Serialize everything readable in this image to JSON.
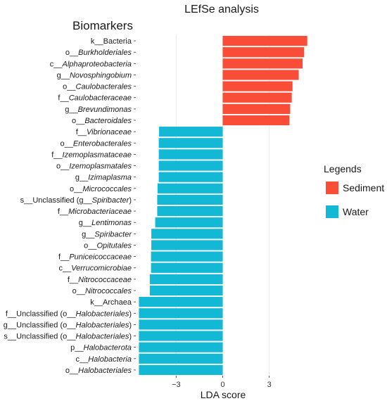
{
  "chart_data": {
    "type": "bar",
    "orientation": "horizontal",
    "title": "LEfSe analysis",
    "ylabel": "Biomarkers",
    "xlabel": "LDA score",
    "xlim": [
      -5.6,
      5.6
    ],
    "xticks": [
      -3,
      0,
      3
    ],
    "grid": true,
    "legend_title": "Legends",
    "legend_position": "right",
    "series": [
      {
        "name": "Sediment",
        "color": "#F94D38"
      },
      {
        "name": "Water",
        "color": "#13B8D4"
      }
    ],
    "categories": [
      {
        "prefix": "k__",
        "name": "Bacteria",
        "italic": false,
        "value": 5.45,
        "group": "Sediment"
      },
      {
        "prefix": "o__",
        "name": "Burkholderiales",
        "italic": true,
        "value": 5.25,
        "group": "Sediment"
      },
      {
        "prefix": "c__",
        "name": "Alphaproteobacteria",
        "italic": true,
        "value": 5.15,
        "group": "Sediment"
      },
      {
        "prefix": "g__",
        "name": "Novosphingobium",
        "italic": true,
        "value": 4.9,
        "group": "Sediment"
      },
      {
        "prefix": "o__",
        "name": "Caulobacterales",
        "italic": true,
        "value": 4.5,
        "group": "Sediment"
      },
      {
        "prefix": "f__",
        "name": "Caulobacteraceae",
        "italic": true,
        "value": 4.45,
        "group": "Sediment"
      },
      {
        "prefix": "g__",
        "name": "Brevundimonas",
        "italic": true,
        "value": 4.35,
        "group": "Sediment"
      },
      {
        "prefix": "o__",
        "name": "Bacteroidales",
        "italic": true,
        "value": 4.3,
        "group": "Sediment"
      },
      {
        "prefix": "f__",
        "name": "Vibrionaceae",
        "italic": true,
        "value": -4.1,
        "group": "Water"
      },
      {
        "prefix": "o__",
        "name": "Enterobacterales",
        "italic": true,
        "value": -4.12,
        "group": "Water"
      },
      {
        "prefix": "f__",
        "name": "Izemoplasmataceae",
        "italic": true,
        "value": -4.12,
        "group": "Water"
      },
      {
        "prefix": "o__",
        "name": "Izemoplasmatales",
        "italic": true,
        "value": -4.12,
        "group": "Water"
      },
      {
        "prefix": "g__",
        "name": "Izimaplasma",
        "italic": true,
        "value": -4.12,
        "group": "Water"
      },
      {
        "prefix": "o__",
        "name": "Micrococcales",
        "italic": true,
        "value": -4.2,
        "group": "Water"
      },
      {
        "prefix": "s__Unclassified (g__",
        "name": "Spiribacter",
        "suffix": ")",
        "italic": true,
        "value": -4.22,
        "group": "Water"
      },
      {
        "prefix": "f__",
        "name": "Microbacteriaceae",
        "italic": true,
        "value": -4.22,
        "group": "Water"
      },
      {
        "prefix": "g__",
        "name": "Lentimonas",
        "italic": true,
        "value": -4.35,
        "group": "Water"
      },
      {
        "prefix": "g__",
        "name": "Spiribacter",
        "italic": true,
        "value": -4.6,
        "group": "Water"
      },
      {
        "prefix": "o__",
        "name": "Opitutales",
        "italic": true,
        "value": -4.6,
        "group": "Water"
      },
      {
        "prefix": "f__",
        "name": "Puniceicoccaceae",
        "italic": true,
        "value": -4.62,
        "group": "Water"
      },
      {
        "prefix": "c__",
        "name": "Verrucomicrobiae",
        "italic": true,
        "value": -4.62,
        "group": "Water"
      },
      {
        "prefix": "f__",
        "name": "Nitrococcaceae",
        "italic": true,
        "value": -4.7,
        "group": "Water"
      },
      {
        "prefix": "o__",
        "name": "Nitrococcales",
        "italic": true,
        "value": -4.7,
        "group": "Water"
      },
      {
        "prefix": "k__",
        "name": "Archaea",
        "italic": false,
        "value": -5.4,
        "group": "Water"
      },
      {
        "prefix": "f__Unclassified (o__",
        "name": "Halobacteriales",
        "suffix": ")",
        "italic": true,
        "value": -5.4,
        "group": "Water"
      },
      {
        "prefix": "g__Unclassified (o__",
        "name": "Halobacteriales",
        "suffix": ")",
        "italic": true,
        "value": -5.4,
        "group": "Water"
      },
      {
        "prefix": "s__Unclassified (o__",
        "name": "Halobacteriales",
        "suffix": ")",
        "italic": true,
        "value": -5.4,
        "group": "Water"
      },
      {
        "prefix": "p__",
        "name": "Halobacterota",
        "italic": true,
        "value": -5.4,
        "group": "Water"
      },
      {
        "prefix": "c__",
        "name": "Halobacteria",
        "italic": true,
        "value": -5.4,
        "group": "Water"
      },
      {
        "prefix": "o__",
        "name": "Halobacteriales",
        "italic": true,
        "value": -5.4,
        "group": "Water"
      }
    ]
  }
}
